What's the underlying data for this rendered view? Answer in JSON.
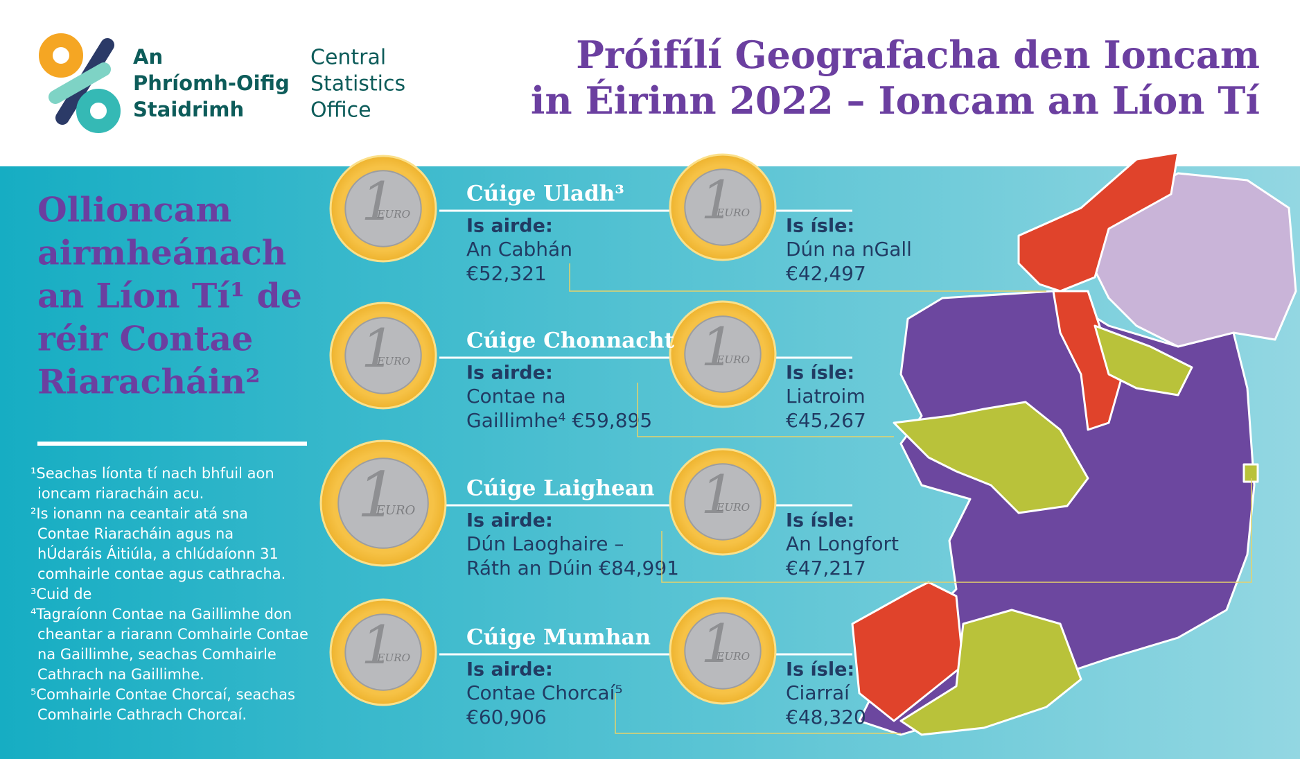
{
  "header": {
    "logo_irish": [
      "An",
      "Phríomh-Oifig",
      "Staidrimh"
    ],
    "logo_english": [
      "Central",
      "Statistics",
      "Office"
    ],
    "title": [
      "Próifílí Geografacha den Ioncam",
      "in Éirinn 2022 – Ioncam an Líon Tí"
    ]
  },
  "sidebar": {
    "heading": [
      "Ollioncam",
      "airmheánach",
      "an Líon Tí¹ de",
      "réir Contae",
      "Riaracháin²"
    ],
    "footnotes": [
      "¹Seachas líonta tí nach bhfuil aon",
      "ioncam riaracháin acu.",
      "²Is ionann na ceantair atá sna",
      "Contae Riaracháin agus na",
      "hÚdaráis Áitiúla, a chlúdaíonn 31",
      "comhairle contae agus cathracha.",
      "³Cuid de",
      "⁴Tagraíonn Contae na Gaillimhe don",
      "cheantar a riarann Comhairle Contae",
      "na Gaillimhe, seachas Comhairle",
      "Cathrach na Gaillimhe.",
      "⁵Comhairle Contae Chorcaí, seachas",
      "Comhairle Cathrach Chorcaí."
    ]
  },
  "coin": {
    "numeral": "1",
    "unit": "EURO"
  },
  "provinces": [
    {
      "name": "Cúige Uladh³",
      "highest": {
        "label": "Is airde:",
        "lines": [
          "An Cabhán",
          "€52,321"
        ]
      },
      "lowest": {
        "label": "Is ísle:",
        "lines": [
          "Dún na nGall",
          "€42,497"
        ]
      }
    },
    {
      "name": "Cúige Chonnacht",
      "highest": {
        "label": "Is airde:",
        "lines": [
          "Contae na",
          "Gaillimhe⁴ €59,895"
        ]
      },
      "lowest": {
        "label": "Is ísle:",
        "lines": [
          "Liatroim",
          "€45,267"
        ]
      }
    },
    {
      "name": "Cúige Laighean",
      "highest": {
        "label": "Is airde:",
        "lines": [
          "Dún Laoghaire –",
          "Ráth an Dúin €84,991"
        ]
      },
      "lowest": {
        "label": "Is ísle:",
        "lines": [
          "An Longfort",
          "€47,217"
        ]
      }
    },
    {
      "name": "Cúige Mumhan",
      "highest": {
        "label": "Is airde:",
        "lines": [
          "Contae Chorcaí⁵",
          "€60,906"
        ]
      },
      "lowest": {
        "label": "Is ísle:",
        "lines": [
          "Ciarraí",
          "€48,320"
        ]
      }
    }
  ]
}
